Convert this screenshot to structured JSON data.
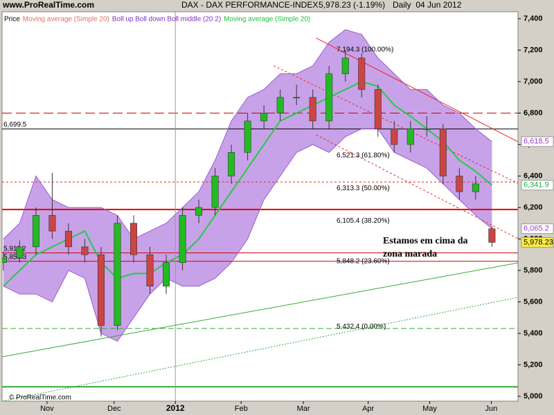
{
  "chart_data": {
    "type": "candlestick",
    "site": "www.ProRealTime.com",
    "title": "DAX - DAX PERFORMANCE-INDEX",
    "last": "5,978.23 (-1.19%)",
    "period": "Daily  04 Jun 2012",
    "footer": "© ProRealTime.com",
    "legend": [
      {
        "name": "Price",
        "color": "#000000"
      },
      {
        "name": "Moving average (Simple 20)",
        "color": "#e07060"
      },
      {
        "name": "Boll up Boll down Boll middle (20 2)",
        "color": "#8030c0"
      },
      {
        "name": "Moving average (Simple 20)",
        "color": "#20c040"
      }
    ],
    "x": [
      0,
      5,
      10,
      15,
      20,
      25,
      30,
      35,
      40,
      45,
      50,
      55,
      60,
      65,
      70,
      75,
      80,
      85,
      90,
      95,
      100,
      105,
      110,
      115,
      120,
      125,
      130,
      135,
      140,
      145,
      150
    ],
    "open": [
      5850,
      5880,
      5950,
      6150,
      6050,
      5950,
      5900,
      5450,
      6100,
      5900,
      5700,
      5850,
      6150,
      6200,
      6400,
      6550,
      6750,
      6800,
      6900,
      6900,
      6750,
      7050,
      7150,
      6950,
      6700,
      6600,
      6700,
      6700,
      6400,
      6300,
      6065
    ],
    "high": [
      5920,
      5990,
      6200,
      6420,
      6100,
      6000,
      5950,
      6150,
      6150,
      5950,
      5900,
      6200,
      6250,
      6450,
      6600,
      6800,
      6850,
      6950,
      6980,
      6950,
      7100,
      7200,
      7180,
      6980,
      6750,
      6750,
      6780,
      6730,
      6450,
      6400,
      6080
    ],
    "low": [
      5800,
      5850,
      5900,
      6000,
      5900,
      5850,
      5380,
      5420,
      5850,
      5650,
      5650,
      5800,
      6100,
      6150,
      6350,
      6500,
      6700,
      6750,
      6850,
      6700,
      6700,
      7000,
      6900,
      6650,
      6550,
      6550,
      6650,
      6350,
      6250,
      6250,
      5950
    ],
    "close": [
      5880,
      5950,
      6150,
      6050,
      5950,
      5900,
      5450,
      6100,
      5900,
      5700,
      5850,
      6150,
      6200,
      6400,
      6550,
      6750,
      6800,
      6900,
      6900,
      6750,
      7050,
      7150,
      6950,
      6700,
      6600,
      6700,
      6700,
      6400,
      6300,
      6350,
      5978.23
    ],
    "up_color": "#22bb22",
    "down_color": "#cc4444",
    "band_fill": "#c8a2e8",
    "series": [
      {
        "color": "#9a5ad0",
        "values": [
          6000,
          6100,
          6400,
          6250,
          6200,
          6200,
          6200,
          6150,
          6000,
          6050,
          6100,
          6200,
          6300,
          6500,
          6750,
          6900,
          6950,
          7050,
          7050,
          7100,
          7250,
          7330,
          7300,
          7150,
          7050,
          6950,
          6950,
          6850,
          6800,
          6700,
          6618.5
        ]
      },
      {
        "color": "#9a5ad0",
        "values": [
          5700,
          5650,
          5650,
          5600,
          5800,
          5750,
          5400,
          5350,
          5500,
          5650,
          5750,
          5700,
          5700,
          5750,
          5850,
          6000,
          6250,
          6400,
          6550,
          6600,
          6550,
          6650,
          6700,
          6700,
          6550,
          6500,
          6450,
          6350,
          6250,
          6150,
          6065.2
        ]
      },
      {
        "color": "#22cc44",
        "values": [
          5700,
          5800,
          5900,
          5950,
          6000,
          6050,
          5850,
          5750,
          5780,
          5780,
          5850,
          5900,
          6000,
          6150,
          6300,
          6450,
          6600,
          6750,
          6800,
          6850,
          6900,
          6950,
          7000,
          6970,
          6850,
          6780,
          6700,
          6620,
          6500,
          6430,
          6341.9
        ]
      }
    ],
    "xlim": [
      -0.4,
      158
    ],
    "xticks": [
      {
        "value": 13.4,
        "label": "Nov"
      },
      {
        "value": 34,
        "label": "Dec"
      },
      {
        "value": 52.8,
        "label": "2012",
        "bold": true
      },
      {
        "value": 73,
        "label": "Feb"
      },
      {
        "value": 92.1,
        "label": "Mar"
      },
      {
        "value": 112,
        "label": "Apr"
      },
      {
        "value": 130.9,
        "label": "May"
      },
      {
        "value": 149.8,
        "label": "Jun"
      }
    ],
    "ylim": [
      4969,
      7444
    ],
    "yticks": [
      {
        "value": 5000,
        "label": "5,000"
      },
      {
        "value": 5200,
        "label": "5,200"
      },
      {
        "value": 5400,
        "label": "5,400"
      },
      {
        "value": 5600,
        "label": "5,600"
      },
      {
        "value": 5800,
        "label": "5,800"
      },
      {
        "value": 6000,
        "label": "6,000"
      },
      {
        "value": 6200,
        "label": "6,200"
      },
      {
        "value": 6400,
        "label": "6,400"
      },
      {
        "value": 6600,
        "label": "6,600"
      },
      {
        "value": 6800,
        "label": "6,800"
      },
      {
        "value": 7000,
        "label": "7,000"
      },
      {
        "value": 7200,
        "label": "7,200"
      },
      {
        "value": 7400,
        "label": "7,400"
      }
    ],
    "hlines": [
      {
        "value": 6699.5,
        "label": "6,699.5",
        "color": "#000000",
        "width": 1,
        "dash": "none"
      },
      {
        "value": 6800,
        "color": "#cc0000",
        "width": 1,
        "dash": "14 6"
      },
      {
        "value": 6362,
        "color": "#ee2222",
        "width": 1,
        "dash": "3 3"
      },
      {
        "value": 6187,
        "color": "#ee0000",
        "width": 2,
        "dash": "none"
      },
      {
        "value": 5911.2,
        "label": "5,911.2",
        "color": "#cc0000",
        "width": 1,
        "dash": "none"
      },
      {
        "value": 5858.3,
        "label": "5,858.3",
        "color": "#cc0000",
        "width": 1,
        "dash": "none"
      },
      {
        "value": 5431,
        "color": "#33aa33",
        "width": 1,
        "dash": "8 4"
      },
      {
        "value": 5060,
        "color": "#33aa33",
        "width": 2,
        "dash": "none"
      }
    ],
    "fib": [
      {
        "value": 7194.3,
        "label": "7,194.3 (100.00%)"
      },
      {
        "value": 6521.3,
        "label": "6,521.3 (61.80%)"
      },
      {
        "value": 6313.3,
        "label": "6,313.3 (50.00%)"
      },
      {
        "value": 6105.4,
        "label": "6,105.4 (38.20%)"
      },
      {
        "value": 5848.2,
        "label": "5,848.2 (23.60%)"
      },
      {
        "value": 5432.4,
        "label": "5,432.4 (0.00%)"
      }
    ],
    "trendlines": [
      {
        "x": [
          96,
          158
        ],
        "y": [
          7277,
          6618
        ],
        "color": "#ee2222",
        "dash": "none"
      },
      {
        "x": [
          83,
          158
        ],
        "y": [
          7101,
          6354
        ],
        "color": "#ee2222",
        "dash": "3 3"
      },
      {
        "x": [
          96,
          158
        ],
        "y": [
          6662,
          6002
        ],
        "color": "#ee2222",
        "dash": "3 3"
      },
      {
        "x": [
          -0.4,
          158
        ],
        "y": [
          5251,
          5848
        ],
        "color": "#33aa33",
        "dash": "none"
      },
      {
        "x": [
          -0.4,
          158
        ],
        "y": [
          4969,
          5629
        ],
        "color": "#33aa33",
        "dash": "2 2"
      }
    ],
    "right_labels": [
      {
        "value": 6618.5,
        "label": "6,618.5",
        "color": "#9a3ad0",
        "bg": "#ffffff"
      },
      {
        "value": 6341.9,
        "label": "6,341.9",
        "color": "#22aa44",
        "bg": "#ffffff"
      },
      {
        "value": 6065.2,
        "label": "6,065.2",
        "color": "#9a3ad0",
        "bg": "#ffffff"
      },
      {
        "value": 5978.23,
        "label": "5,978.23",
        "color": "#000000",
        "bg": "#ffee44"
      }
    ],
    "annotation": [
      "Estamos em cima da",
      "zona marada"
    ]
  }
}
